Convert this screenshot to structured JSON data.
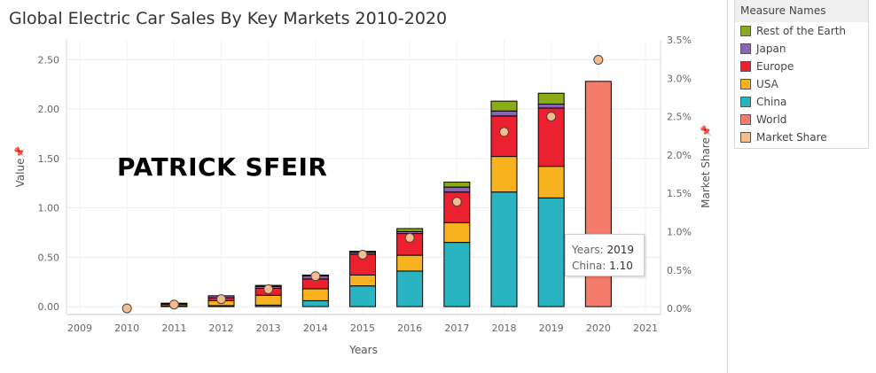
{
  "title": "Global Electric Car Sales By Key Markets 2010-2020",
  "watermark": "PATRICK SFEIR",
  "legend": {
    "title": "Measure Names",
    "items": [
      {
        "label": "Rest of the Earth",
        "color": "#8aac16"
      },
      {
        "label": "Japan",
        "color": "#8c64b5"
      },
      {
        "label": "Europe",
        "color": "#ec2130"
      },
      {
        "label": "USA",
        "color": "#f8b11f"
      },
      {
        "label": "China",
        "color": "#2ab3c0"
      },
      {
        "label": "World",
        "color": "#f57c6a"
      },
      {
        "label": "Market Share",
        "color": "#f6bc8c"
      }
    ]
  },
  "tooltip": {
    "line1_label": "Years:",
    "line1_value": "2019",
    "line2_label": "China:",
    "line2_value": "1.10"
  },
  "chart_data": {
    "type": "bar",
    "stacked": true,
    "xlabel": "Years",
    "ylabel": "Value",
    "y2label": "Market Share",
    "x_ticks": [
      "2009",
      "2010",
      "2011",
      "2012",
      "2013",
      "2014",
      "2015",
      "2016",
      "2017",
      "2018",
      "2019",
      "2020",
      "2021"
    ],
    "x_range": [
      2009,
      2021
    ],
    "y_ticks": [
      "0.00",
      "0.50",
      "1.00",
      "1.50",
      "2.00",
      "2.50"
    ],
    "ylim": [
      -0.08,
      2.7
    ],
    "y2_ticks": [
      "0.0%",
      "0.5%",
      "1.0%",
      "1.5%",
      "2.0%",
      "2.5%",
      "3.0%",
      "3.5%"
    ],
    "y2lim": [
      -0.08,
      3.5
    ],
    "categories": [
      "2010",
      "2011",
      "2012",
      "2013",
      "2014",
      "2015",
      "2016",
      "2017",
      "2018",
      "2019",
      "2020"
    ],
    "series": [
      {
        "name": "China",
        "color": "#2ab3c0",
        "values": [
          0.0,
          0.005,
          0.01,
          0.015,
          0.06,
          0.21,
          0.36,
          0.65,
          1.16,
          1.1,
          null
        ]
      },
      {
        "name": "USA",
        "color": "#f8b11f",
        "values": [
          0.0,
          0.015,
          0.05,
          0.1,
          0.12,
          0.11,
          0.16,
          0.2,
          0.36,
          0.32,
          null
        ]
      },
      {
        "name": "Europe",
        "color": "#ec2130",
        "values": [
          0.0,
          0.01,
          0.03,
          0.07,
          0.1,
          0.21,
          0.22,
          0.31,
          0.41,
          0.59,
          null
        ]
      },
      {
        "name": "Japan",
        "color": "#8c64b5",
        "values": [
          0.0,
          0.005,
          0.02,
          0.02,
          0.03,
          0.02,
          0.02,
          0.05,
          0.05,
          0.04,
          null
        ]
      },
      {
        "name": "Rest of the Earth",
        "color": "#8aac16",
        "values": [
          0.0,
          0.0,
          0.0,
          0.01,
          0.01,
          0.01,
          0.03,
          0.05,
          0.1,
          0.11,
          null
        ]
      },
      {
        "name": "World",
        "color": "#f57c6a",
        "values": [
          null,
          null,
          null,
          null,
          null,
          null,
          null,
          null,
          null,
          null,
          2.28
        ]
      }
    ],
    "market_share": {
      "name": "Market Share",
      "color": "#f6bc8c",
      "axis": "right",
      "values": [
        0.0,
        0.05,
        0.12,
        0.25,
        0.42,
        0.7,
        0.92,
        1.39,
        2.3,
        2.5,
        3.24
      ]
    }
  }
}
